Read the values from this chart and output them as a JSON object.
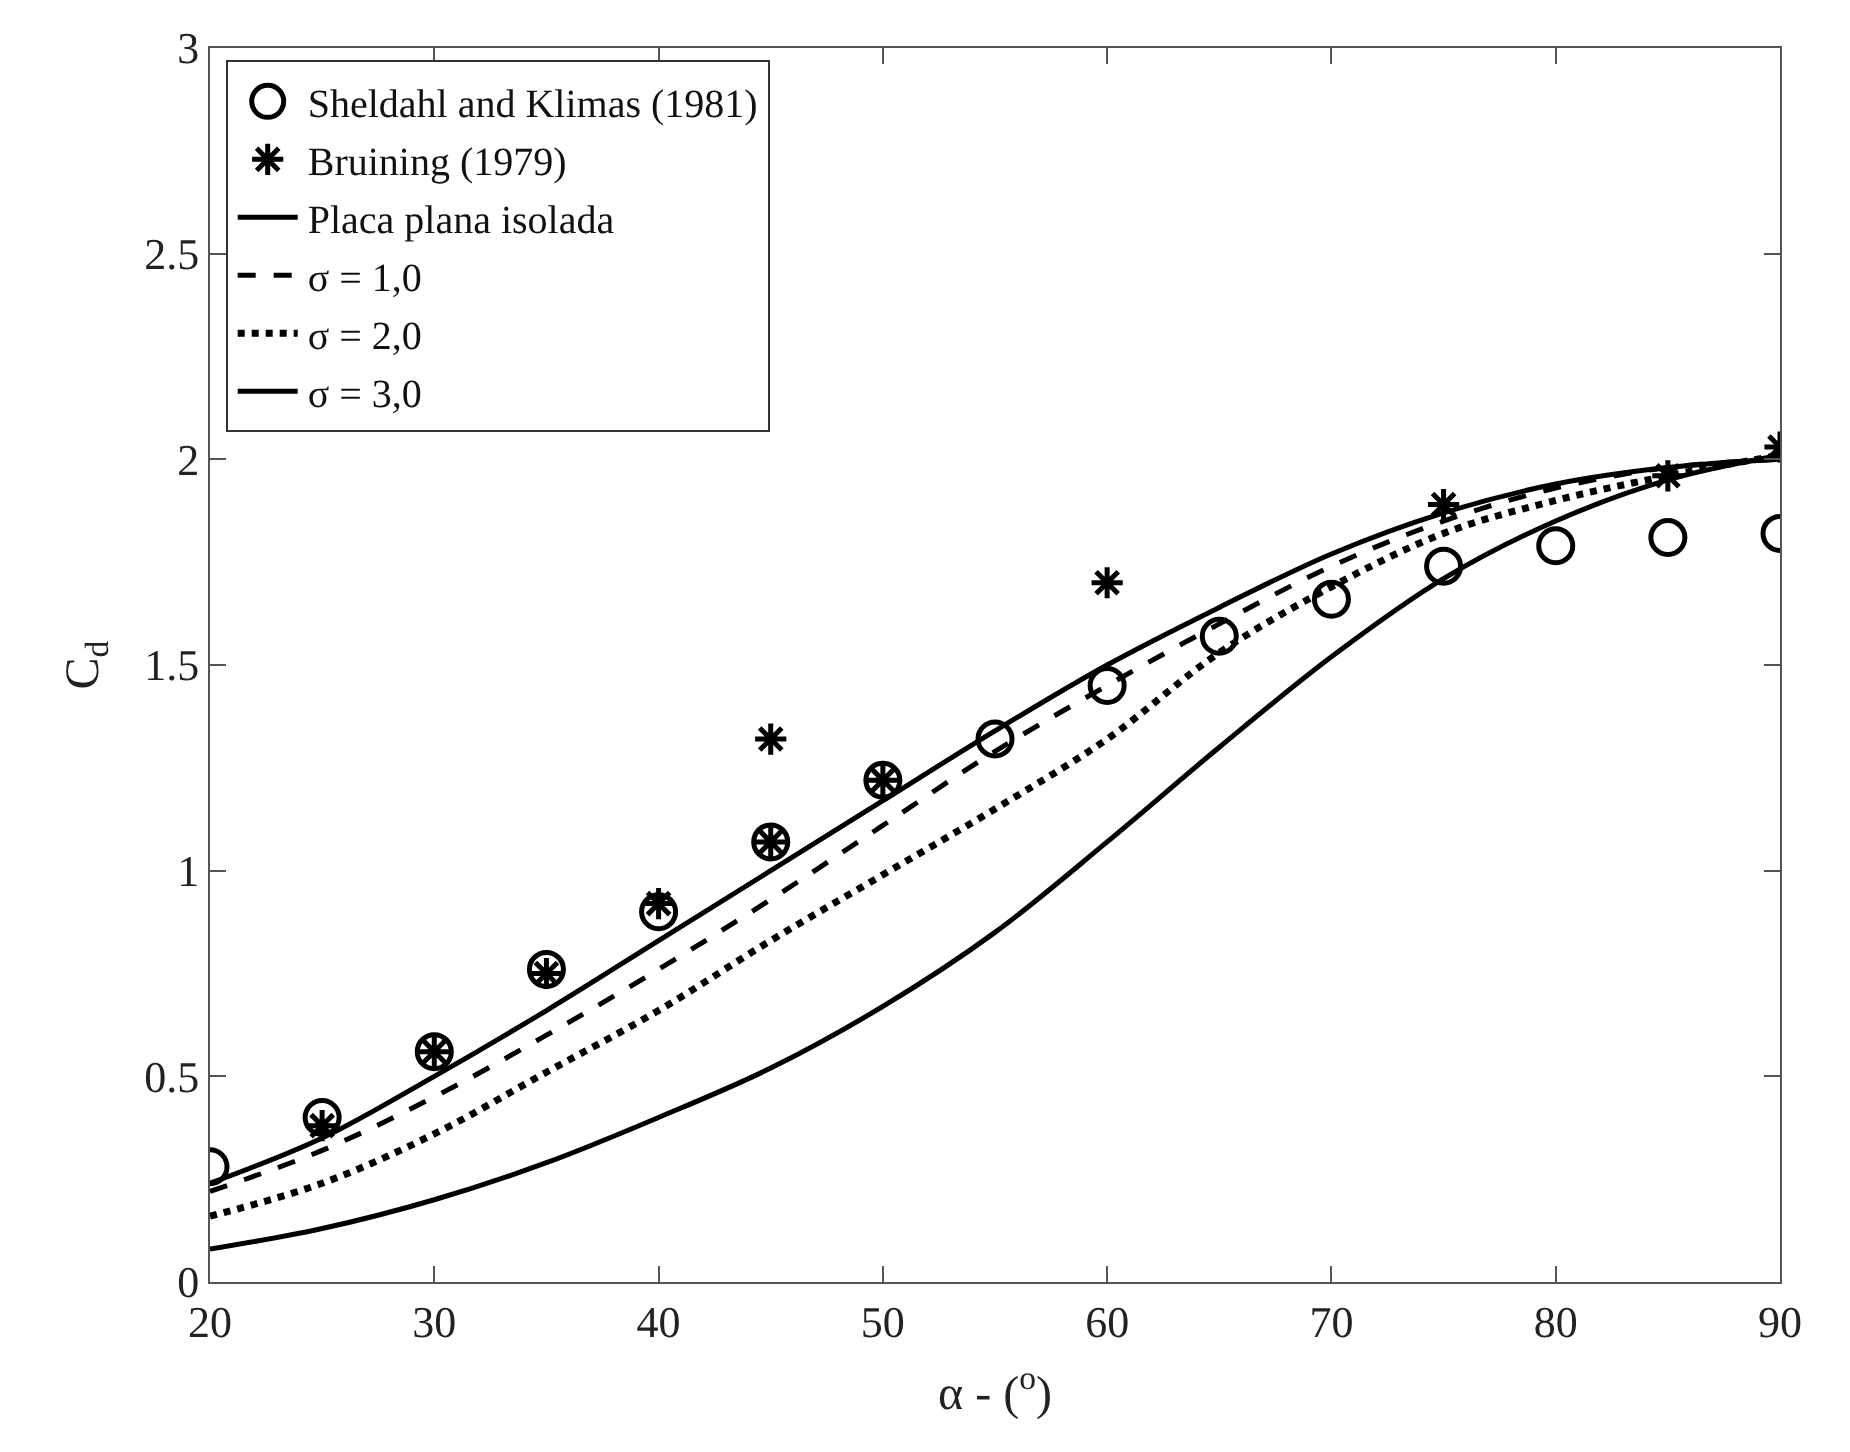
{
  "chart_data": {
    "type": "line",
    "xlabel": "α - ($^{o}$)",
    "ylabel": "C$_{d}$",
    "xlim": [
      20,
      90
    ],
    "xticks": [
      20,
      30,
      40,
      50,
      60,
      70,
      80,
      90
    ],
    "ylim": [
      0,
      3
    ],
    "yticks": [
      0,
      0.5,
      1,
      1.5,
      2,
      2.5,
      3
    ],
    "legend": "top left",
    "series": [
      {
        "name": "Sheldahl and Klimas (1981)",
        "type": "scatter",
        "marker": "circle",
        "color": "#000000",
        "x": [
          20,
          25,
          30,
          35,
          40,
          45,
          50,
          55,
          60,
          65,
          70,
          75,
          80,
          85,
          90
        ],
        "values": [
          0.28,
          0.4,
          0.56,
          0.76,
          0.9,
          1.07,
          1.22,
          1.32,
          1.45,
          1.57,
          1.66,
          1.74,
          1.79,
          1.81,
          1.82
        ]
      },
      {
        "name": "Bruining (1979)",
        "type": "scatter",
        "marker": "cross",
        "color": "#000000",
        "x": [
          25,
          30,
          35,
          40,
          45,
          45,
          50,
          60,
          75,
          85,
          90
        ],
        "values": [
          0.38,
          0.56,
          0.75,
          0.92,
          1.07,
          1.32,
          1.22,
          1.7,
          1.89,
          1.96,
          2.03
        ]
      },
      {
        "name": "Placa plana isolada",
        "line_style": "solid",
        "color": "#000000",
        "x": [
          20,
          25,
          30,
          35,
          40,
          45,
          50,
          55,
          60,
          65,
          70,
          75,
          80,
          85,
          90
        ],
        "values": [
          0.24,
          0.35,
          0.5,
          0.66,
          0.83,
          1.0,
          1.17,
          1.34,
          1.5,
          1.64,
          1.77,
          1.87,
          1.94,
          1.98,
          2.0
        ]
      },
      {
        "name": "σ = 1,0",
        "line_style": "dashed",
        "color": "#000000",
        "x": [
          20,
          25,
          30,
          35,
          40,
          45,
          50,
          55,
          60,
          65,
          70,
          75,
          80,
          85,
          90
        ],
        "values": [
          0.22,
          0.32,
          0.45,
          0.6,
          0.76,
          0.93,
          1.11,
          1.29,
          1.45,
          1.6,
          1.74,
          1.85,
          1.93,
          1.98,
          2.0
        ]
      },
      {
        "name": "σ = 2,0",
        "line_style": "dotted",
        "color": "#000000",
        "x": [
          20,
          25,
          30,
          35,
          40,
          45,
          50,
          55,
          60,
          65,
          70,
          75,
          80,
          85,
          90
        ],
        "values": [
          0.16,
          0.24,
          0.36,
          0.51,
          0.66,
          0.83,
          0.99,
          1.15,
          1.32,
          1.53,
          1.69,
          1.82,
          1.9,
          1.96,
          2.01
        ]
      },
      {
        "name": "σ = 3,0",
        "line_style": "solid",
        "color": "#000000",
        "x": [
          20,
          25,
          30,
          35,
          40,
          45,
          50,
          55,
          60,
          65,
          70,
          75,
          80,
          85,
          90
        ],
        "values": [
          0.08,
          0.13,
          0.2,
          0.29,
          0.4,
          0.52,
          0.67,
          0.85,
          1.07,
          1.3,
          1.52,
          1.71,
          1.85,
          1.95,
          2.01
        ]
      }
    ]
  }
}
